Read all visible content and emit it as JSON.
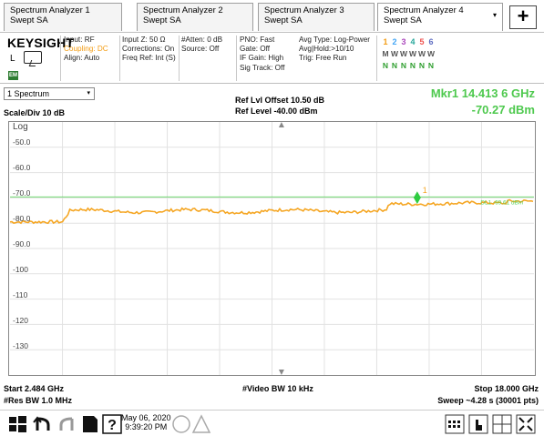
{
  "tabs": [
    {
      "line1": "Spectrum Analyzer 1",
      "line2": "Swept SA"
    },
    {
      "line1": "Spectrum Analyzer 2",
      "line2": "Swept SA"
    },
    {
      "line1": "Spectrum Analyzer 3",
      "line2": "Swept SA"
    },
    {
      "line1": "Spectrum Analyzer 4",
      "line2": "Swept SA"
    }
  ],
  "tab_menu_glyph": "▾",
  "add_tab_label": "+",
  "settings": {
    "brand": "KEYSIGHT",
    "mode_letter": "L",
    "badge": "EM",
    "col1": [
      "Input: RF",
      "Coupling: DC",
      "Align: Auto"
    ],
    "col2": [
      "Input Z: 50 Ω",
      "Corrections: On",
      "Freq Ref: Int (S)"
    ],
    "col3": [
      "#Atten: 0 dB",
      "Source: Off"
    ],
    "col4": [
      "PNO: Fast",
      "Gate: Off",
      "IF Gain: High",
      "Sig Track: Off"
    ],
    "col5": [
      "Avg Type: Log-Power",
      "Avg|Hold:>10/10",
      "Trig: Free Run"
    ],
    "trace_numbers": [
      "1",
      "2",
      "3",
      "4",
      "5",
      "6"
    ],
    "trace_numbers_colors": [
      "#f39c12",
      "#42a5f5",
      "#ab47bc",
      "#26a69a",
      "#ef5350",
      "#5c6bc0"
    ],
    "trace_types": [
      "M",
      "W",
      "W",
      "W",
      "W",
      "W"
    ],
    "trace_dets": [
      "N",
      "N",
      "N",
      "N",
      "N",
      "N"
    ]
  },
  "plot_header": {
    "window": "1 Spectrum",
    "window_glyph": "▾",
    "scale": "Scale/Div 10 dB",
    "ref_offset": "Ref Lvl Offset 10.50 dB",
    "ref_level": "Ref Level -40.00 dBm",
    "marker_freq": "Mkr1  14.413 6 GHz",
    "marker_amp": "-70.27 dBm"
  },
  "graph": {
    "log_label": "Log",
    "y_ticks": [
      "-50.0",
      "-60.0",
      "-70.0",
      "-80.0",
      "-90.0",
      "-100",
      "-110",
      "-120",
      "-130"
    ],
    "dl_label": "DL1 -69.61 dBm",
    "marker_label": "1",
    "trace_color": "#f5a623",
    "dl_color": "#5ed35e",
    "marker_color": "#2ecc40"
  },
  "footer": {
    "start": "Start 2.484 GHz",
    "res_bw": "#Res BW 1.0 MHz",
    "video_bw": "#Video BW 10 kHz",
    "stop": "Stop 18.000 GHz",
    "sweep": "Sweep ~4.28 s (30001 pts)"
  },
  "taskbar": {
    "date": "May 06, 2020",
    "time": "9:39:20 PM"
  }
}
